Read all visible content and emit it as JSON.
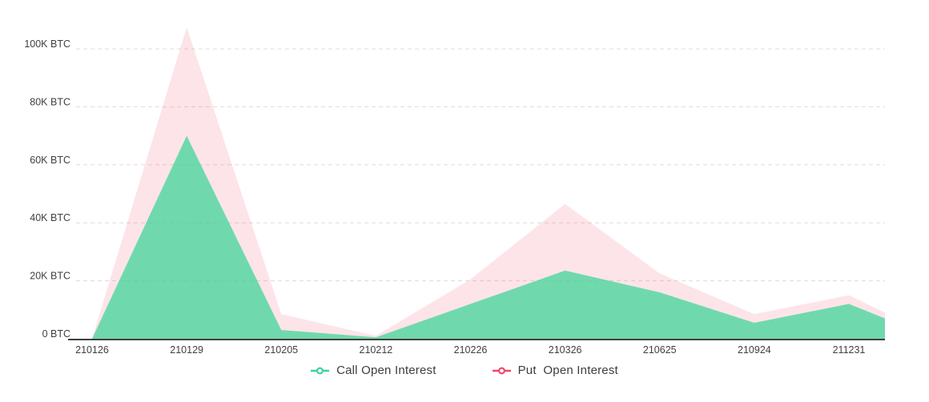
{
  "chart_data": {
    "type": "area",
    "title": "",
    "xlabel": "",
    "ylabel": "BTC",
    "categories": [
      "210126",
      "210129",
      "210205",
      "210212",
      "210226",
      "210326",
      "210625",
      "210924",
      "211231"
    ],
    "series": [
      {
        "name": "Put Open Interest",
        "line_color": "#F2476A",
        "fill_color": "rgba(242,71,106,0.15)",
        "values": [
          0,
          107500,
          8500,
          1000,
          20500,
          46500,
          22500,
          8500,
          15000
        ],
        "edge_value": 9000
      },
      {
        "name": "Call Open Interest",
        "line_color": "#3DD598",
        "fill_color": "rgba(61,213,152,0.74)",
        "values": [
          0,
          70000,
          3000,
          500,
          12000,
          23500,
          16000,
          5500,
          12000
        ],
        "edge_value": 7000
      }
    ],
    "y_ticks": [
      {
        "label": "0 BTC",
        "value": 0
      },
      {
        "label": "20K BTC",
        "value": 20000
      },
      {
        "label": "40K BTC",
        "value": 40000
      },
      {
        "label": "60K BTC",
        "value": 60000
      },
      {
        "label": "80K BTC",
        "value": 80000
      },
      {
        "label": "100K BTC",
        "value": 100000
      }
    ],
    "ylim": [
      0,
      110000
    ],
    "grid": "horizontal-dashed",
    "legend_position": "bottom"
  },
  "legend": {
    "items": [
      {
        "label": "Call Open Interest",
        "color": "#3DD598"
      },
      {
        "label": "Put  Open Interest",
        "color": "#F2476A"
      }
    ]
  },
  "style_colors": {
    "grid_line": "#dcdcdc",
    "axis_line": "#3f3f3f",
    "tick_text": "#3f3f3f"
  }
}
